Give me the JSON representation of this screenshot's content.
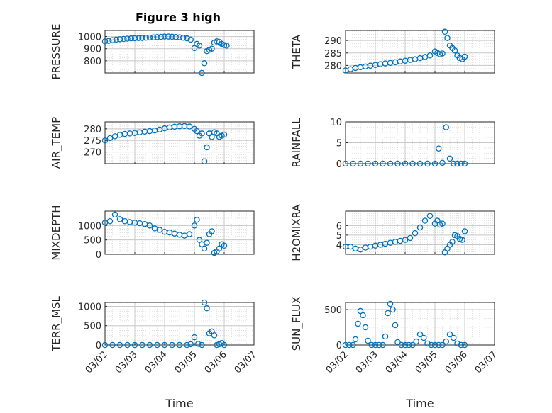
{
  "figure": {
    "title": "Figure 3 high"
  },
  "colors": {
    "marker": "#0072BD",
    "grid": "#d9d9d9",
    "axis": "#262626"
  },
  "chart_data": [
    {
      "id": "pressure",
      "type": "scatter",
      "title": "Figure 3 high",
      "ylabel": "PRESSURE",
      "xlabel": "",
      "ylim": [
        700,
        1050
      ],
      "yticks": [
        800,
        900,
        1000
      ],
      "grid": true,
      "xlim": [
        "03/02",
        "03/07"
      ],
      "xticks": [
        "03/02",
        "03/03",
        "03/04",
        "03/05",
        "03/06",
        "03/07"
      ],
      "x": [
        "03/02 00:00",
        "03/02 03:00",
        "03/02 06:00",
        "03/02 09:00",
        "03/02 12:00",
        "03/02 15:00",
        "03/02 18:00",
        "03/02 21:00",
        "03/03 00:00",
        "03/03 03:00",
        "03/03 06:00",
        "03/03 09:00",
        "03/03 12:00",
        "03/03 15:00",
        "03/03 18:00",
        "03/03 21:00",
        "03/04 00:00",
        "03/04 03:00",
        "03/04 06:00",
        "03/04 09:00",
        "03/04 12:00",
        "03/04 15:00",
        "03/04 18:00",
        "03/04 21:00",
        "03/05 00:00",
        "03/05 02:00",
        "03/05 04:00",
        "03/05 06:00",
        "03/05 08:00",
        "03/05 10:00",
        "03/05 12:00",
        "03/05 14:00",
        "03/05 16:00",
        "03/05 18:00",
        "03/05 20:00",
        "03/05 22:00",
        "03/06 00:00",
        "03/06 02:00"
      ],
      "y": [
        960,
        965,
        970,
        975,
        978,
        980,
        983,
        985,
        986,
        987,
        988,
        990,
        992,
        993,
        995,
        997,
        1000,
        1000,
        998,
        996,
        994,
        990,
        985,
        975,
        905,
        940,
        925,
        700,
        780,
        880,
        890,
        900,
        950,
        960,
        955,
        940,
        930,
        925
      ]
    },
    {
      "id": "theta",
      "type": "scatter",
      "ylabel": "THETA",
      "xlabel": "",
      "ylim": [
        277,
        294
      ],
      "yticks": [
        280,
        285,
        290
      ],
      "grid": true,
      "xlim": [
        "03/02",
        "03/07"
      ],
      "xticks": [
        "03/02",
        "03/03",
        "03/04",
        "03/05",
        "03/06",
        "03/07"
      ],
      "x": [
        "03/02 00:00",
        "03/02 04:00",
        "03/02 08:00",
        "03/02 12:00",
        "03/02 16:00",
        "03/02 20:00",
        "03/03 00:00",
        "03/03 04:00",
        "03/03 08:00",
        "03/03 12:00",
        "03/03 16:00",
        "03/03 20:00",
        "03/04 00:00",
        "03/04 04:00",
        "03/04 08:00",
        "03/04 12:00",
        "03/04 16:00",
        "03/04 20:00",
        "03/05 00:00",
        "03/05 02:00",
        "03/05 04:00",
        "03/05 06:00",
        "03/05 08:00",
        "03/05 10:00",
        "03/05 12:00",
        "03/05 14:00",
        "03/05 16:00",
        "03/05 18:00",
        "03/05 20:00",
        "03/05 22:00",
        "03/06 00:00"
      ],
      "y": [
        278,
        278.5,
        279,
        279.3,
        279.6,
        279.9,
        280.2,
        280.5,
        280.8,
        281,
        281.3,
        281.6,
        281.9,
        282.2,
        282.5,
        282.9,
        283.4,
        284,
        285.6,
        285,
        284.5,
        284.8,
        293.5,
        291,
        288,
        287,
        286,
        284,
        283,
        282.5,
        283.5
      ]
    },
    {
      "id": "air_temp",
      "type": "scatter",
      "ylabel": "AIR_TEMP",
      "xlabel": "",
      "ylim": [
        265,
        283
      ],
      "yticks": [
        270,
        275,
        280
      ],
      "grid": true,
      "xlim": [
        "03/02",
        "03/07"
      ],
      "xticks": [
        "03/02",
        "03/03",
        "03/04",
        "03/05",
        "03/06",
        "03/07"
      ],
      "x": [
        "03/02 00:00",
        "03/02 04:00",
        "03/02 08:00",
        "03/02 12:00",
        "03/02 16:00",
        "03/02 20:00",
        "03/03 00:00",
        "03/03 04:00",
        "03/03 08:00",
        "03/03 12:00",
        "03/03 16:00",
        "03/03 20:00",
        "03/04 00:00",
        "03/04 04:00",
        "03/04 08:00",
        "03/04 12:00",
        "03/04 16:00",
        "03/04 20:00",
        "03/05 00:00",
        "03/05 02:00",
        "03/05 04:00",
        "03/05 06:00",
        "03/05 08:00",
        "03/05 10:00",
        "03/05 12:00",
        "03/05 14:00",
        "03/05 16:00",
        "03/05 18:00",
        "03/05 20:00",
        "03/05 22:00",
        "03/06 00:00"
      ],
      "y": [
        275,
        276,
        276.8,
        277.4,
        277.8,
        278,
        278.2,
        278.5,
        278.8,
        279,
        279.3,
        279.7,
        280.2,
        280.6,
        280.9,
        281.1,
        281.2,
        281,
        280,
        279,
        277,
        278,
        266,
        272,
        278,
        276.5,
        278.5,
        278,
        276.5,
        277,
        277.5
      ]
    },
    {
      "id": "rainfall",
      "type": "scatter",
      "ylabel": "RAINFALL",
      "xlabel": "",
      "ylim": [
        0,
        10
      ],
      "yticks": [
        0,
        5,
        10
      ],
      "grid": true,
      "xlim": [
        "03/02",
        "03/07"
      ],
      "xticks": [
        "03/02",
        "03/03",
        "03/04",
        "03/05",
        "03/06",
        "03/07"
      ],
      "x": [
        "03/02 00:00",
        "03/02 06:00",
        "03/02 12:00",
        "03/02 18:00",
        "03/03 00:00",
        "03/03 06:00",
        "03/03 12:00",
        "03/03 18:00",
        "03/04 00:00",
        "03/04 06:00",
        "03/04 12:00",
        "03/04 18:00",
        "03/05 00:00",
        "03/05 03:00",
        "03/05 06:00",
        "03/05 09:00",
        "03/05 12:00",
        "03/05 15:00",
        "03/05 18:00",
        "03/05 21:00",
        "03/06 00:00"
      ],
      "y": [
        0,
        0,
        0,
        0,
        0,
        0,
        0,
        0,
        0,
        0,
        0,
        0,
        0,
        3.6,
        0.2,
        8.7,
        1.2,
        0,
        0,
        0,
        0
      ]
    },
    {
      "id": "mixdepth",
      "type": "scatter",
      "ylabel": "MIXDEPTH",
      "xlabel": "",
      "ylim": [
        0,
        1500
      ],
      "yticks": [
        0,
        500,
        1000
      ],
      "grid": true,
      "xlim": [
        "03/02",
        "03/07"
      ],
      "xticks": [
        "03/02",
        "03/03",
        "03/04",
        "03/05",
        "03/06",
        "03/07"
      ],
      "x": [
        "03/02 00:00",
        "03/02 04:00",
        "03/02 08:00",
        "03/02 12:00",
        "03/02 16:00",
        "03/02 20:00",
        "03/03 00:00",
        "03/03 04:00",
        "03/03 08:00",
        "03/03 12:00",
        "03/03 16:00",
        "03/03 20:00",
        "03/04 00:00",
        "03/04 04:00",
        "03/04 08:00",
        "03/04 12:00",
        "03/04 16:00",
        "03/04 20:00",
        "03/05 00:00",
        "03/05 02:00",
        "03/05 04:00",
        "03/05 06:00",
        "03/05 08:00",
        "03/05 10:00",
        "03/05 12:00",
        "03/05 14:00",
        "03/05 16:00",
        "03/05 18:00",
        "03/05 20:00",
        "03/05 22:00",
        "03/06 00:00"
      ],
      "y": [
        1100,
        1150,
        1380,
        1220,
        1150,
        1120,
        1100,
        1080,
        1050,
        1000,
        900,
        850,
        780,
        760,
        720,
        680,
        650,
        700,
        1000,
        1200,
        500,
        350,
        200,
        400,
        700,
        800,
        50,
        100,
        200,
        350,
        300
      ]
    },
    {
      "id": "h2omixra",
      "type": "scatter",
      "ylabel": "H2OMIXRA",
      "xlabel": "",
      "ylim": [
        3,
        7.5
      ],
      "yticks": [
        4,
        5,
        6
      ],
      "grid": true,
      "xlim": [
        "03/02",
        "03/07"
      ],
      "xticks": [
        "03/02",
        "03/03",
        "03/04",
        "03/05",
        "03/06",
        "03/07"
      ],
      "x": [
        "03/02 00:00",
        "03/02 04:00",
        "03/02 08:00",
        "03/02 12:00",
        "03/02 16:00",
        "03/02 20:00",
        "03/03 00:00",
        "03/03 04:00",
        "03/03 08:00",
        "03/03 12:00",
        "03/03 16:00",
        "03/03 20:00",
        "03/04 00:00",
        "03/04 04:00",
        "03/04 08:00",
        "03/04 12:00",
        "03/04 16:00",
        "03/04 20:00",
        "03/05 00:00",
        "03/05 02:00",
        "03/05 04:00",
        "03/05 06:00",
        "03/05 08:00",
        "03/05 10:00",
        "03/05 12:00",
        "03/05 14:00",
        "03/05 16:00",
        "03/05 18:00",
        "03/05 20:00",
        "03/05 22:00",
        "03/06 00:00"
      ],
      "y": [
        3.8,
        3.8,
        3.6,
        3.5,
        3.7,
        3.8,
        3.9,
        4,
        4.1,
        4.2,
        4.3,
        4.4,
        4.5,
        4.7,
        5.2,
        5.8,
        6.5,
        7,
        6.2,
        6.5,
        6.1,
        6.2,
        3.2,
        3.6,
        4,
        4.3,
        5,
        4.9,
        4.6,
        4.5,
        5.4
      ]
    },
    {
      "id": "terr_msl",
      "type": "scatter",
      "ylabel": "TERR_MSL",
      "xlabel": "Time",
      "ylim": [
        0,
        1100
      ],
      "yticks": [
        0,
        500,
        1000
      ],
      "grid": true,
      "xlim": [
        "03/02",
        "03/07"
      ],
      "xticks": [
        "03/02",
        "03/03",
        "03/04",
        "03/05",
        "03/06",
        "03/07"
      ],
      "x": [
        "03/02 00:00",
        "03/02 06:00",
        "03/02 12:00",
        "03/02 18:00",
        "03/03 00:00",
        "03/03 06:00",
        "03/03 12:00",
        "03/03 18:00",
        "03/04 00:00",
        "03/04 06:00",
        "03/04 12:00",
        "03/04 18:00",
        "03/04 21:00",
        "03/05 00:00",
        "03/05 03:00",
        "03/05 06:00",
        "03/05 08:00",
        "03/05 10:00",
        "03/05 12:00",
        "03/05 14:00",
        "03/05 16:00",
        "03/05 18:00",
        "03/05 20:00",
        "03/05 22:00",
        "03/06 00:00"
      ],
      "y": [
        0,
        0,
        0,
        0,
        0,
        0,
        0,
        0,
        0,
        0,
        0,
        0,
        20,
        200,
        30,
        0,
        1100,
        950,
        300,
        350,
        250,
        0,
        20,
        50,
        0
      ]
    },
    {
      "id": "sun_flux",
      "type": "scatter",
      "ylabel": "SUN_FLUX",
      "xlabel": "Time",
      "ylim": [
        0,
        600
      ],
      "yticks": [
        0,
        500
      ],
      "grid": true,
      "xlim": [
        "03/02",
        "03/07"
      ],
      "xticks": [
        "03/02",
        "03/03",
        "03/04",
        "03/05",
        "03/06",
        "03/07"
      ],
      "x": [
        "03/02 00:00",
        "03/02 03:00",
        "03/02 06:00",
        "03/02 08:00",
        "03/02 10:00",
        "03/02 12:00",
        "03/02 14:00",
        "03/02 16:00",
        "03/02 18:00",
        "03/02 21:00",
        "03/03 00:00",
        "03/03 03:00",
        "03/03 06:00",
        "03/03 08:00",
        "03/03 10:00",
        "03/03 12:00",
        "03/03 14:00",
        "03/03 16:00",
        "03/03 18:00",
        "03/03 21:00",
        "03/04 00:00",
        "03/04 03:00",
        "03/04 06:00",
        "03/04 09:00",
        "03/04 12:00",
        "03/04 15:00",
        "03/04 18:00",
        "03/04 21:00",
        "03/05 00:00",
        "03/05 03:00",
        "03/05 06:00",
        "03/05 09:00",
        "03/05 12:00",
        "03/05 15:00",
        "03/05 18:00",
        "03/05 21:00",
        "03/06 00:00"
      ],
      "y": [
        0,
        0,
        0,
        80,
        300,
        480,
        420,
        250,
        60,
        0,
        0,
        0,
        0,
        120,
        450,
        580,
        500,
        280,
        40,
        0,
        0,
        0,
        0,
        50,
        150,
        100,
        20,
        0,
        0,
        0,
        0,
        50,
        150,
        100,
        20,
        0,
        0
      ]
    }
  ]
}
